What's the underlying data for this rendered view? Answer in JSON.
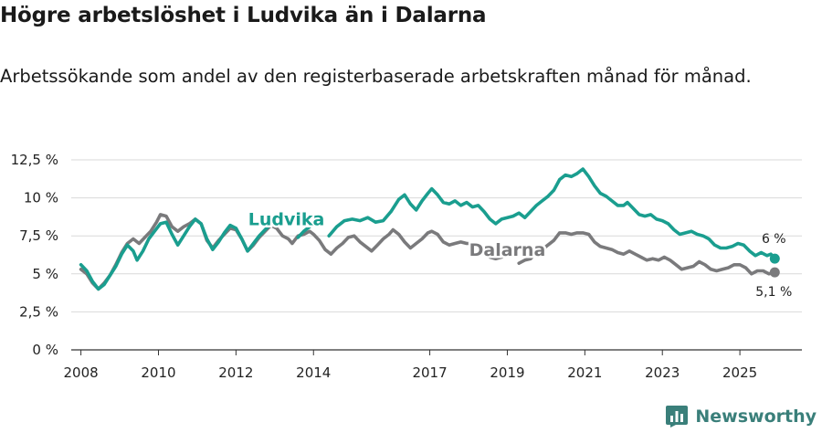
{
  "title": "Högre arbetslöshet i Ludvika än i Dalarna",
  "subtitle": "Arbetssökande som andel av den registerbaserade arbetskraften månad för månad.",
  "brand": "Newsworthy",
  "colors": {
    "ludvika": "#1a9e8f",
    "dalarna": "#7a7a7c",
    "grid": "#d9d9d9",
    "axis": "#333333"
  },
  "chart_data": {
    "type": "line",
    "ylim": [
      0,
      12.5
    ],
    "xlim": [
      2007.75,
      2026.6
    ],
    "yticks": [
      {
        "v": 0,
        "label": "0 %"
      },
      {
        "v": 2.5,
        "label": "2,5 %"
      },
      {
        "v": 5,
        "label": "5 %"
      },
      {
        "v": 7.5,
        "label": "7,5 %"
      },
      {
        "v": 10,
        "label": "10 %"
      },
      {
        "v": 12.5,
        "label": "12,5 %"
      }
    ],
    "xticks": [
      {
        "v": 2008,
        "label": "2008"
      },
      {
        "v": 2010,
        "label": "2010"
      },
      {
        "v": 2012,
        "label": "2012"
      },
      {
        "v": 2014,
        "label": "2014"
      },
      {
        "v": 2017,
        "label": "2017"
      },
      {
        "v": 2019,
        "label": "2019"
      },
      {
        "v": 2021,
        "label": "2021"
      },
      {
        "v": 2023,
        "label": "2023"
      },
      {
        "v": 2025,
        "label": "2025"
      }
    ],
    "series": [
      {
        "name": "Ludvika",
        "label": "Ludvika",
        "end_label": "6 %",
        "points": [
          [
            2008.0,
            5.6
          ],
          [
            2008.15,
            5.2
          ],
          [
            2008.3,
            4.5
          ],
          [
            2008.45,
            4.0
          ],
          [
            2008.6,
            4.3
          ],
          [
            2008.75,
            4.9
          ],
          [
            2008.9,
            5.5
          ],
          [
            2009.05,
            6.3
          ],
          [
            2009.2,
            6.9
          ],
          [
            2009.35,
            6.5
          ],
          [
            2009.45,
            5.9
          ],
          [
            2009.6,
            6.5
          ],
          [
            2009.75,
            7.3
          ],
          [
            2009.9,
            7.8
          ],
          [
            2010.05,
            8.3
          ],
          [
            2010.2,
            8.4
          ],
          [
            2010.35,
            7.6
          ],
          [
            2010.5,
            6.9
          ],
          [
            2010.65,
            7.5
          ],
          [
            2010.8,
            8.1
          ],
          [
            2010.95,
            8.6
          ],
          [
            2011.1,
            8.3
          ],
          [
            2011.25,
            7.3
          ],
          [
            2011.4,
            6.6
          ],
          [
            2011.55,
            7.1
          ],
          [
            2011.7,
            7.7
          ],
          [
            2011.85,
            8.2
          ],
          [
            2012.0,
            8.0
          ],
          [
            2012.15,
            7.3
          ],
          [
            2012.3,
            6.5
          ],
          [
            2012.45,
            7.0
          ],
          [
            2012.6,
            7.5
          ],
          [
            2012.75,
            7.9
          ],
          [
            2012.9,
            8.3
          ],
          null,
          [
            2013.6,
            7.4
          ],
          [
            2013.75,
            7.8
          ],
          [
            2013.9,
            8.1
          ],
          null,
          [
            2014.4,
            7.5
          ],
          [
            2014.6,
            8.1
          ],
          [
            2014.8,
            8.5
          ],
          [
            2015.0,
            8.6
          ],
          [
            2015.2,
            8.5
          ],
          [
            2015.4,
            8.7
          ],
          [
            2015.6,
            8.4
          ],
          [
            2015.8,
            8.5
          ],
          [
            2016.0,
            9.1
          ],
          [
            2016.2,
            9.9
          ],
          [
            2016.35,
            10.2
          ],
          [
            2016.5,
            9.6
          ],
          [
            2016.65,
            9.2
          ],
          [
            2016.8,
            9.8
          ],
          [
            2016.95,
            10.3
          ],
          [
            2017.05,
            10.6
          ],
          [
            2017.2,
            10.2
          ],
          [
            2017.35,
            9.7
          ],
          [
            2017.5,
            9.6
          ],
          [
            2017.65,
            9.8
          ],
          [
            2017.8,
            9.5
          ],
          [
            2017.95,
            9.7
          ],
          [
            2018.1,
            9.4
          ],
          [
            2018.25,
            9.5
          ],
          [
            2018.4,
            9.1
          ],
          [
            2018.55,
            8.6
          ],
          [
            2018.7,
            8.3
          ],
          [
            2018.85,
            8.6
          ],
          [
            2019.0,
            8.7
          ],
          [
            2019.15,
            8.8
          ],
          [
            2019.3,
            9.0
          ],
          [
            2019.45,
            8.7
          ],
          [
            2019.6,
            9.1
          ],
          [
            2019.75,
            9.5
          ],
          [
            2019.9,
            9.8
          ],
          [
            2020.05,
            10.1
          ],
          [
            2020.2,
            10.5
          ],
          [
            2020.35,
            11.2
          ],
          [
            2020.5,
            11.5
          ],
          [
            2020.65,
            11.4
          ],
          [
            2020.8,
            11.6
          ],
          [
            2020.95,
            11.9
          ],
          [
            2021.1,
            11.4
          ],
          [
            2021.25,
            10.8
          ],
          [
            2021.4,
            10.3
          ],
          [
            2021.55,
            10.1
          ],
          [
            2021.7,
            9.8
          ],
          [
            2021.85,
            9.5
          ],
          [
            2022.0,
            9.5
          ],
          [
            2022.1,
            9.7
          ],
          [
            2022.25,
            9.3
          ],
          [
            2022.4,
            8.9
          ],
          [
            2022.55,
            8.8
          ],
          [
            2022.7,
            8.9
          ],
          [
            2022.85,
            8.6
          ],
          [
            2023.0,
            8.5
          ],
          [
            2023.15,
            8.3
          ],
          [
            2023.3,
            7.9
          ],
          [
            2023.45,
            7.6
          ],
          [
            2023.6,
            7.7
          ],
          [
            2023.75,
            7.8
          ],
          [
            2023.9,
            7.6
          ],
          [
            2024.05,
            7.5
          ],
          [
            2024.2,
            7.3
          ],
          [
            2024.35,
            6.9
          ],
          [
            2024.5,
            6.7
          ],
          [
            2024.65,
            6.7
          ],
          [
            2024.8,
            6.8
          ],
          [
            2024.95,
            7.0
          ],
          [
            2025.1,
            6.9
          ],
          [
            2025.25,
            6.5
          ],
          [
            2025.4,
            6.2
          ],
          [
            2025.55,
            6.4
          ],
          [
            2025.7,
            6.2
          ],
          [
            2025.8,
            6.3
          ],
          [
            2025.9,
            6.0
          ]
        ]
      },
      {
        "name": "Dalarna",
        "label": "Dalarna",
        "end_label": "5,1 %",
        "points": [
          [
            2008.0,
            5.3
          ],
          [
            2008.15,
            5.0
          ],
          [
            2008.3,
            4.4
          ],
          [
            2008.45,
            4.0
          ],
          [
            2008.6,
            4.4
          ],
          [
            2008.75,
            4.9
          ],
          [
            2008.9,
            5.6
          ],
          [
            2009.05,
            6.4
          ],
          [
            2009.2,
            7.0
          ],
          [
            2009.35,
            7.3
          ],
          [
            2009.5,
            7.0
          ],
          [
            2009.65,
            7.4
          ],
          [
            2009.8,
            7.8
          ],
          [
            2009.95,
            8.4
          ],
          [
            2010.05,
            8.9
          ],
          [
            2010.2,
            8.8
          ],
          [
            2010.35,
            8.1
          ],
          [
            2010.5,
            7.8
          ],
          [
            2010.65,
            8.1
          ],
          [
            2010.8,
            8.3
          ],
          [
            2010.95,
            8.6
          ],
          [
            2011.1,
            8.3
          ],
          [
            2011.25,
            7.2
          ],
          [
            2011.4,
            6.7
          ],
          [
            2011.55,
            7.2
          ],
          [
            2011.7,
            7.6
          ],
          [
            2011.85,
            8.0
          ],
          [
            2012.0,
            7.9
          ],
          [
            2012.15,
            7.3
          ],
          [
            2012.3,
            6.5
          ],
          [
            2012.45,
            6.9
          ],
          [
            2012.6,
            7.4
          ],
          [
            2012.75,
            7.8
          ],
          [
            2012.9,
            8.2
          ],
          [
            2013.05,
            8.0
          ],
          [
            2013.2,
            7.5
          ],
          [
            2013.35,
            7.3
          ],
          [
            2013.45,
            7.0
          ],
          [
            2013.6,
            7.5
          ],
          [
            2013.75,
            7.6
          ],
          [
            2013.9,
            7.8
          ],
          [
            2014.0,
            7.6
          ],
          [
            2014.15,
            7.2
          ],
          [
            2014.3,
            6.6
          ],
          [
            2014.45,
            6.3
          ],
          [
            2014.6,
            6.7
          ],
          [
            2014.75,
            7.0
          ],
          [
            2014.9,
            7.4
          ],
          [
            2015.05,
            7.5
          ],
          [
            2015.2,
            7.1
          ],
          [
            2015.35,
            6.8
          ],
          [
            2015.5,
            6.5
          ],
          [
            2015.65,
            6.9
          ],
          [
            2015.8,
            7.3
          ],
          [
            2015.95,
            7.6
          ],
          [
            2016.05,
            7.9
          ],
          [
            2016.2,
            7.6
          ],
          [
            2016.35,
            7.1
          ],
          [
            2016.5,
            6.7
          ],
          [
            2016.65,
            7.0
          ],
          [
            2016.8,
            7.3
          ],
          [
            2016.95,
            7.7
          ],
          [
            2017.05,
            7.8
          ],
          [
            2017.2,
            7.6
          ],
          [
            2017.35,
            7.1
          ],
          [
            2017.5,
            6.9
          ],
          [
            2017.65,
            7.0
          ],
          [
            2017.8,
            7.1
          ],
          [
            2017.95,
            7.0
          ],
          [
            2018.1,
            7.0
          ],
          [
            2018.25,
            6.9
          ],
          [
            2018.4,
            6.7
          ],
          [
            2018.55,
            6.1
          ],
          [
            2018.7,
            6.0
          ],
          [
            2018.85,
            6.1
          ],
          null,
          [
            2019.3,
            5.7
          ],
          [
            2019.45,
            5.9
          ],
          [
            2019.6,
            6.0
          ],
          [
            2019.75,
            6.4
          ],
          [
            2019.9,
            6.6
          ],
          [
            2020.05,
            6.9
          ],
          [
            2020.2,
            7.2
          ],
          [
            2020.35,
            7.7
          ],
          [
            2020.5,
            7.7
          ],
          [
            2020.65,
            7.6
          ],
          [
            2020.8,
            7.7
          ],
          [
            2020.95,
            7.7
          ],
          [
            2021.1,
            7.6
          ],
          [
            2021.25,
            7.1
          ],
          [
            2021.4,
            6.8
          ],
          [
            2021.55,
            6.7
          ],
          [
            2021.7,
            6.6
          ],
          [
            2021.85,
            6.4
          ],
          [
            2022.0,
            6.3
          ],
          [
            2022.15,
            6.5
          ],
          [
            2022.3,
            6.3
          ],
          [
            2022.45,
            6.1
          ],
          [
            2022.6,
            5.9
          ],
          [
            2022.75,
            6.0
          ],
          [
            2022.9,
            5.9
          ],
          [
            2023.05,
            6.1
          ],
          [
            2023.2,
            5.9
          ],
          [
            2023.35,
            5.6
          ],
          [
            2023.5,
            5.3
          ],
          [
            2023.65,
            5.4
          ],
          [
            2023.8,
            5.5
          ],
          [
            2023.95,
            5.8
          ],
          [
            2024.1,
            5.6
          ],
          [
            2024.25,
            5.3
          ],
          [
            2024.4,
            5.2
          ],
          [
            2024.55,
            5.3
          ],
          [
            2024.7,
            5.4
          ],
          [
            2024.85,
            5.6
          ],
          [
            2025.0,
            5.6
          ],
          [
            2025.15,
            5.4
          ],
          [
            2025.3,
            5.0
          ],
          [
            2025.45,
            5.2
          ],
          [
            2025.6,
            5.2
          ],
          [
            2025.75,
            5.0
          ],
          [
            2025.9,
            5.1
          ]
        ]
      }
    ]
  }
}
